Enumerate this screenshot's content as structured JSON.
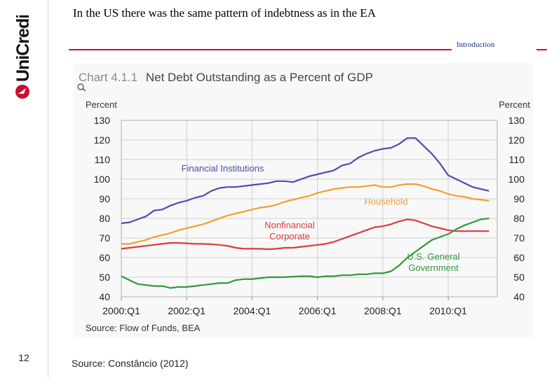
{
  "slide": {
    "title": "In the US there was the same pattern of indebtness as in the EA",
    "section_tag": "Introduction",
    "page_number": "12",
    "source_note": "Source: Constâncio (2012)",
    "brand_color": "#c8102e",
    "logo_text": "UniCredit"
  },
  "chart_data": {
    "type": "line",
    "title_prefix": "Chart 4.1.1",
    "title_main": "Net Debt Outstanding as a Percent of GDP",
    "title_prefix_color": "#8a8a8a",
    "title_main_color": "#444444",
    "ylabel_left": "Percent",
    "ylabel_right": "Percent",
    "ylim": [
      40,
      130
    ],
    "yticks": [
      130,
      120,
      110,
      100,
      90,
      80,
      70,
      60,
      50,
      40
    ],
    "xlim": [
      2000.0,
      2011.5
    ],
    "xtick_positions": [
      2000.0,
      2002.0,
      2004.0,
      2006.0,
      2008.0,
      2010.0
    ],
    "xtick_labels": [
      "2000:Q1",
      "2002:Q1",
      "2004:Q1",
      "2006:Q1",
      "2008:Q1",
      "2010:Q1"
    ],
    "grid": true,
    "source": "Source: Flow of Funds, BEA",
    "series": [
      {
        "name": "Financial Institutions",
        "label_lines": [
          "Financial Institutions"
        ],
        "label_anchor": [
          2003.1,
          104
        ],
        "color": "#4a50a8",
        "x": [
          2000.0,
          2000.25,
          2000.5,
          2000.75,
          2001.0,
          2001.25,
          2001.5,
          2001.75,
          2002.0,
          2002.25,
          2002.5,
          2002.75,
          2003.0,
          2003.25,
          2003.5,
          2003.75,
          2004.0,
          2004.25,
          2004.5,
          2004.75,
          2005.0,
          2005.25,
          2005.5,
          2005.75,
          2006.0,
          2006.25,
          2006.5,
          2006.75,
          2007.0,
          2007.25,
          2007.5,
          2007.75,
          2008.0,
          2008.25,
          2008.5,
          2008.75,
          2009.0,
          2009.25,
          2009.5,
          2009.75,
          2010.0,
          2010.25,
          2010.5,
          2010.75,
          2011.0,
          2011.25
        ],
        "values": [
          77.5,
          78,
          79.5,
          81,
          84,
          84.5,
          86.5,
          88,
          89,
          90.5,
          91.5,
          94,
          95.5,
          96,
          96,
          96.5,
          97,
          97.5,
          98,
          99,
          99,
          98.5,
          100,
          101.5,
          102.5,
          103.5,
          104.5,
          107,
          108,
          111,
          113,
          114.5,
          115.5,
          116,
          118,
          121,
          121,
          117,
          113,
          108,
          102,
          100,
          98,
          96,
          95,
          94
        ]
      },
      {
        "name": "Household",
        "label_lines": [
          "Household"
        ],
        "label_anchor": [
          2008.1,
          87
        ],
        "color": "#f0a030",
        "x": [
          2000.0,
          2000.25,
          2000.5,
          2000.75,
          2001.0,
          2001.25,
          2001.5,
          2001.75,
          2002.0,
          2002.25,
          2002.5,
          2002.75,
          2003.0,
          2003.25,
          2003.5,
          2003.75,
          2004.0,
          2004.25,
          2004.5,
          2004.75,
          2005.0,
          2005.25,
          2005.5,
          2005.75,
          2006.0,
          2006.25,
          2006.5,
          2006.75,
          2007.0,
          2007.25,
          2007.5,
          2007.75,
          2008.0,
          2008.25,
          2008.5,
          2008.75,
          2009.0,
          2009.25,
          2009.5,
          2009.75,
          2010.0,
          2010.25,
          2010.5,
          2010.75,
          2011.0,
          2011.25
        ],
        "values": [
          67,
          67,
          68,
          69,
          70.5,
          71.5,
          72.5,
          74,
          75,
          76,
          77,
          78.5,
          80,
          81.5,
          82.5,
          83.5,
          84.5,
          85.5,
          86,
          87,
          88.5,
          89.5,
          90.5,
          91.5,
          93,
          94,
          95,
          95.5,
          96,
          96,
          96.5,
          97,
          96,
          96,
          97,
          97.5,
          97.5,
          96.5,
          95,
          94,
          92.5,
          91.5,
          91,
          90,
          89.5,
          89
        ]
      },
      {
        "name": "Nonfinancial Corporate",
        "label_lines": [
          "Nonfinancial",
          "Corporate"
        ],
        "label_anchor": [
          2005.15,
          75
        ],
        "color": "#e03840",
        "x": [
          2000.0,
          2000.25,
          2000.5,
          2000.75,
          2001.0,
          2001.25,
          2001.5,
          2001.75,
          2002.0,
          2002.25,
          2002.5,
          2002.75,
          2003.0,
          2003.25,
          2003.5,
          2003.75,
          2004.0,
          2004.25,
          2004.5,
          2004.75,
          2005.0,
          2005.25,
          2005.5,
          2005.75,
          2006.0,
          2006.25,
          2006.5,
          2006.75,
          2007.0,
          2007.25,
          2007.5,
          2007.75,
          2008.0,
          2008.25,
          2008.5,
          2008.75,
          2009.0,
          2009.25,
          2009.5,
          2009.75,
          2010.0,
          2010.25,
          2010.5,
          2010.75,
          2011.0,
          2011.25
        ],
        "values": [
          64.5,
          65,
          65.5,
          66,
          66.5,
          67,
          67.5,
          67.5,
          67.3,
          67,
          67,
          66.8,
          66.5,
          66,
          65,
          64.5,
          64.5,
          64.5,
          64.3,
          64.5,
          65,
          65,
          65.5,
          66,
          66.5,
          67,
          68,
          69.5,
          71,
          72.5,
          74,
          75.5,
          76,
          77,
          78.5,
          79.5,
          79,
          77.5,
          76,
          75,
          74,
          73.5,
          73.5,
          73.5,
          73.5,
          73.5
        ]
      },
      {
        "name": "U.S. General Government",
        "label_lines": [
          "U.S. General",
          "Government"
        ],
        "label_anchor": [
          2009.55,
          59
        ],
        "color": "#2e9a3c",
        "x": [
          2000.0,
          2000.25,
          2000.5,
          2000.75,
          2001.0,
          2001.25,
          2001.5,
          2001.75,
          2002.0,
          2002.25,
          2002.5,
          2002.75,
          2003.0,
          2003.25,
          2003.5,
          2003.75,
          2004.0,
          2004.25,
          2004.5,
          2004.75,
          2005.0,
          2005.25,
          2005.5,
          2005.75,
          2006.0,
          2006.25,
          2006.5,
          2006.75,
          2007.0,
          2007.25,
          2007.5,
          2007.75,
          2008.0,
          2008.25,
          2008.5,
          2008.75,
          2009.0,
          2009.25,
          2009.5,
          2009.75,
          2010.0,
          2010.25,
          2010.5,
          2010.75,
          2011.0,
          2011.25
        ],
        "values": [
          50.5,
          48.5,
          46.5,
          46,
          45.5,
          45.5,
          44.5,
          45,
          45,
          45.5,
          46,
          46.5,
          47,
          47,
          48.5,
          49,
          49,
          49.5,
          50,
          50,
          50,
          50.3,
          50.5,
          50.5,
          50,
          50.5,
          50.5,
          51,
          51,
          51.5,
          51.5,
          52,
          52,
          53,
          56,
          60,
          63,
          66,
          69,
          70.5,
          72,
          74.5,
          76.5,
          78,
          79.5,
          80
        ]
      }
    ]
  }
}
